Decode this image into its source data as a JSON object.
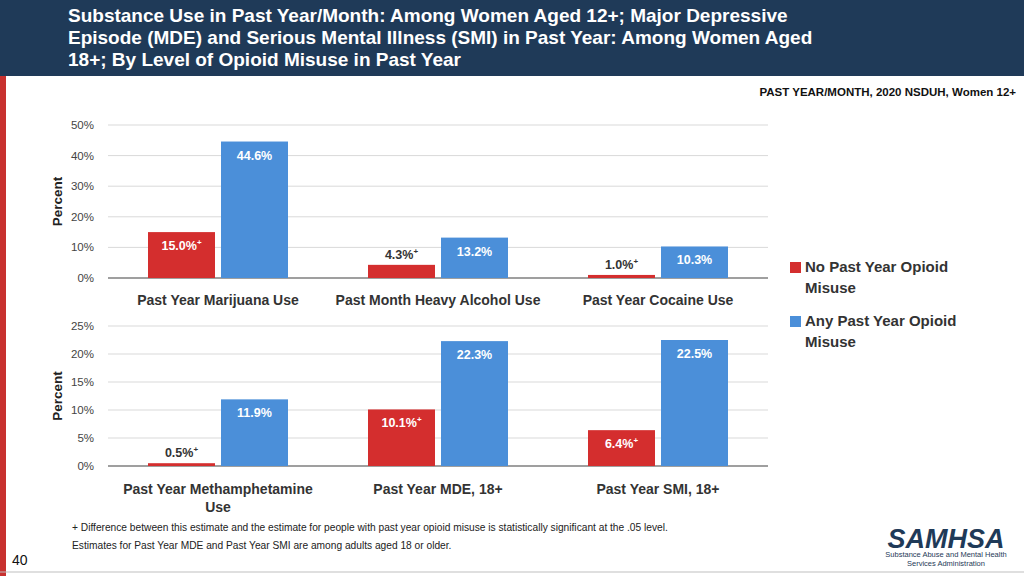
{
  "page": {
    "title_lines": [
      "Substance Use in Past Year/Month: Among Women Aged 12+; Major Depressive",
      "Episode (MDE) and Serious Mental Illness (SMI) in Past Year: Among Women Aged",
      "18+; By Level of Opioid Misuse in Past Year"
    ],
    "note": "PAST YEAR/MONTH, 2020 NSDUH, Women 12+",
    "footnotes": [
      "+ Difference between this estimate and the estimate for people with past year opioid misuse is statistically significant at the .05 level.",
      "Estimates for Past Year MDE and Past Year SMI are among adults aged 18 or older."
    ],
    "page_number": "40",
    "logo": {
      "name": "SAMHSA",
      "lines": [
        "Substance Abuse and Mental Health",
        "Services Administration"
      ]
    }
  },
  "chart_data": [
    {
      "type": "bar",
      "y_label": "Percent",
      "categories": [
        "Past Year Marijuana Use",
        "Past Month Heavy Alcohol Use",
        "Past Year Cocaine Use"
      ],
      "series": [
        {
          "name": "No Past Year Opioid Misuse",
          "color": "#d42e2e",
          "values": [
            15.0,
            4.3,
            1.0
          ],
          "value_labels": [
            "15.0%+",
            "4.3%+",
            "1.0%+"
          ]
        },
        {
          "name": "Any Past Year Opioid Misuse",
          "color": "#4b8fd9",
          "values": [
            44.6,
            13.2,
            10.3
          ],
          "value_labels": [
            "44.6%",
            "13.2%",
            "10.3%"
          ]
        }
      ],
      "ylim": [
        0,
        50
      ],
      "yticks": [
        {
          "value": 0,
          "label": "0%"
        },
        {
          "value": 10,
          "label": "10%"
        },
        {
          "value": 20,
          "label": "20%"
        },
        {
          "value": 30,
          "label": "30%"
        },
        {
          "value": 40,
          "label": "40%"
        },
        {
          "value": 50,
          "label": "50%"
        }
      ],
      "grid": true,
      "data_labels": true,
      "legend": "right"
    },
    {
      "type": "bar",
      "y_label": "Percent",
      "categories": [
        "Past Year Methamphetamine Use",
        "Past Year MDE, 18+",
        "Past Year SMI, 18+"
      ],
      "series": [
        {
          "color": "#d42e2e",
          "values": [
            0.5,
            10.1,
            6.4
          ],
          "value_labels": [
            "0.5%+",
            "10.1%+",
            "6.4%+"
          ]
        },
        {
          "color": "#4b8fd9",
          "values": [
            11.9,
            22.3,
            22.5
          ],
          "value_labels": [
            "11.9%",
            "22.3%",
            "22.5%"
          ]
        }
      ],
      "ylim": [
        0,
        25
      ],
      "yticks": [
        {
          "value": 0,
          "label": "0%"
        },
        {
          "value": 5,
          "label": "5%"
        },
        {
          "value": 10,
          "label": "10%"
        },
        {
          "value": 15,
          "label": "15%"
        },
        {
          "value": 20,
          "label": "20%"
        },
        {
          "value": 25,
          "label": "25%"
        }
      ],
      "grid": true,
      "data_labels": true
    }
  ]
}
